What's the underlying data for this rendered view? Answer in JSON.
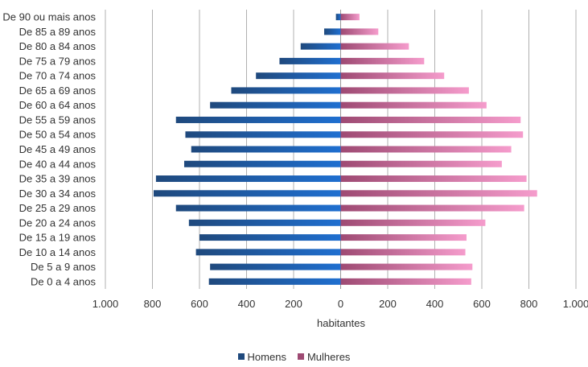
{
  "chart_data": {
    "type": "bar",
    "orientation": "horizontal",
    "layout": "population-pyramid",
    "xlabel": "habitantes",
    "xlim": [
      -1000,
      1000
    ],
    "x_ticks": [
      -1000,
      -800,
      -600,
      -400,
      -200,
      0,
      200,
      400,
      600,
      800,
      1000
    ],
    "x_tick_labels": [
      "1.000",
      "800",
      "600",
      "400",
      "200",
      "0",
      "200",
      "400",
      "600",
      "800",
      "1.000"
    ],
    "grid": "vertical",
    "legend_position": "bottom",
    "categories": [
      "De 90 ou mais anos",
      "De 85 a 89 anos",
      "De 80 a 84 anos",
      "De 75 a 79 anos",
      "De 70 a 74 anos",
      "De 65 a 69 anos",
      "De 60 a 64 anos",
      "De 55 a 59 anos",
      "De 50 a 54 anos",
      "De 45 a 49 anos",
      "De 40 a 44 anos",
      "De 35 a 39 anos",
      "De 30 a 34 anos",
      "De 25 a 29 anos",
      "De 20 a 24 anos",
      "De 15 a 19 anos",
      "De 10 a 14 anos",
      "De 5 a 9 anos",
      "De 0 a 4 anos"
    ],
    "series": [
      {
        "name": "Homens",
        "color": "#1f497d",
        "color_light": "#1f6fd0",
        "values": [
          20,
          70,
          170,
          260,
          360,
          465,
          555,
          700,
          660,
          635,
          665,
          785,
          795,
          700,
          645,
          600,
          615,
          555,
          560
        ]
      },
      {
        "name": "Mulheres",
        "color": "#9e4a73",
        "color_light": "#f59ccc",
        "values": [
          80,
          160,
          290,
          355,
          440,
          545,
          620,
          765,
          775,
          725,
          685,
          790,
          835,
          780,
          615,
          535,
          530,
          560,
          555
        ]
      }
    ]
  }
}
